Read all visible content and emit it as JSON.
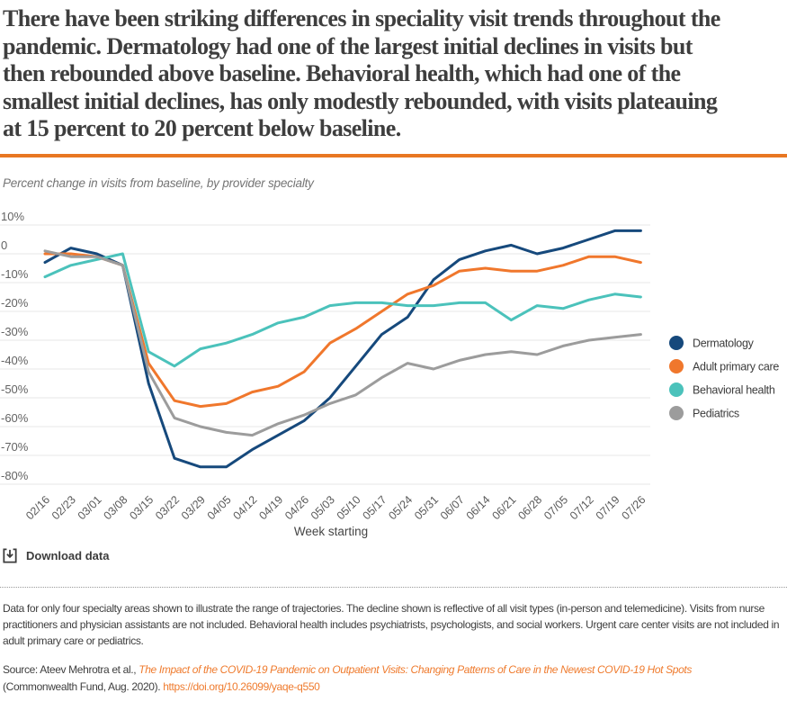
{
  "header": {
    "title_lines": [
      "There have been striking differences in speciality visit trends throughout the",
      "pandemic. Dermatology had one of the largest initial declines in visits but",
      "then rebounded above baseline. Behavioral health, which had one of the",
      "smallest initial declines, has only modestly rebounded, with visits plateauing",
      "at 15 percent to 20 percent below baseline."
    ],
    "divider_color": "#e87722"
  },
  "chart": {
    "subtitle": "Percent change in visits from baseline, by provider specialty",
    "download_label": "Download data"
  },
  "chart_data": {
    "type": "line",
    "title": "Percent change in visits from baseline, by provider specialty",
    "xlabel": "Week starting",
    "ylabel": "",
    "ylim": [
      -80,
      10
    ],
    "grid": true,
    "legend_position": "right",
    "yticks": [
      {
        "label": "10%",
        "value": 10
      },
      {
        "label": "0",
        "value": 0
      },
      {
        "label": "-10%",
        "value": -10
      },
      {
        "label": "-20%",
        "value": -20
      },
      {
        "label": "-30%",
        "value": -30
      },
      {
        "label": "-40%",
        "value": -40
      },
      {
        "label": "-50%",
        "value": -50
      },
      {
        "label": "-60%",
        "value": -60
      },
      {
        "label": "-70%",
        "value": -70
      },
      {
        "label": "-80%",
        "value": -80
      }
    ],
    "categories": [
      "02/16",
      "02/23",
      "03/01",
      "03/08",
      "03/15",
      "03/22",
      "03/29",
      "04/05",
      "04/12",
      "04/19",
      "04/26",
      "05/03",
      "05/10",
      "05/17",
      "05/24",
      "05/31",
      "06/07",
      "06/14",
      "06/21",
      "06/28",
      "07/05",
      "07/12",
      "07/19",
      "07/26"
    ],
    "series": [
      {
        "name": "Dermatology",
        "color": "#16497c",
        "values": [
          -3,
          2,
          0,
          -4,
          -45,
          -71,
          -74,
          -74,
          -68,
          -63,
          -58,
          -50,
          -39,
          -28,
          -22,
          -9,
          -2,
          1,
          3,
          0,
          2,
          5,
          8,
          8
        ]
      },
      {
        "name": "Adult primary care",
        "color": "#f0772c",
        "values": [
          0,
          0,
          -1,
          -4,
          -38,
          -51,
          -53,
          -52,
          -48,
          -46,
          -41,
          -31,
          -26,
          -20,
          -14,
          -11,
          -6,
          -5,
          -6,
          -6,
          -4,
          -1,
          -1,
          -3
        ]
      },
      {
        "name": "Behavioral health",
        "color": "#4bc2bb",
        "values": [
          -8,
          -4,
          -2,
          0,
          -34,
          -39,
          -33,
          -31,
          -28,
          -24,
          -22,
          -18,
          -17,
          -17,
          -18,
          -18,
          -17,
          -17,
          -23,
          -18,
          -19,
          -16,
          -14,
          -15
        ]
      },
      {
        "name": "Pediatrics",
        "color": "#9c9c9c",
        "values": [
          1,
          -1,
          -1,
          -4,
          -41,
          -57,
          -60,
          -62,
          -63,
          -59,
          -56,
          -52,
          -49,
          -43,
          -38,
          -40,
          -37,
          -35,
          -34,
          -35,
          -32,
          -30,
          -29,
          -28
        ]
      }
    ]
  },
  "footer": {
    "notes": "Data for only four specialty areas shown to illustrate the range of trajectories. The decline shown is reflective of all visit types (in-person and telemedicine). Visits from nurse practitioners and physician assistants are not included. Behavioral health includes psychiatrists, psychologists, and social workers. Urgent care center visits are not included in adult primary care or pediatrics.",
    "source_prefix": "Source: Ateev Mehrotra et al., ",
    "source_link_text": "The Impact of the COVID-19 Pandemic on Outpatient Visits: Changing Patterns of Care in the Newest COVID-19 Hot Spots",
    "source_suffix": "(Commonwealth Fund, Aug. 2020). ",
    "doi_link_text": "https://doi.org/10.26099/yaqe-q550"
  }
}
